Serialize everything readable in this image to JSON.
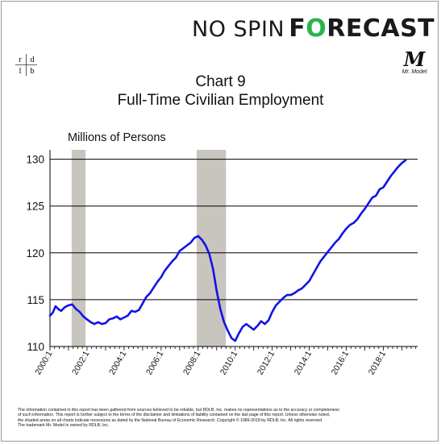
{
  "brand": {
    "no_spin": "NO SPIN",
    "forecast_f": "F",
    "forecast_o": "O",
    "forecast_rest": "RECAST",
    "rdlb_logo": [
      "r",
      "d",
      "l",
      "b"
    ],
    "mr_model_mark": "M",
    "mr_model_caption": "Mr. Model"
  },
  "colors": {
    "line": "#1212e8",
    "recession": "#c8c4be",
    "brand_green": "#2bb34a",
    "gridline": "#000000"
  },
  "chart_data": {
    "type": "line",
    "title_line1": "Chart 9",
    "title_line2": "Full-Time Civilian Employment",
    "units_label": "Millions of Persons",
    "ylim": [
      110,
      131
    ],
    "yticks": [
      110,
      115,
      120,
      125,
      130
    ],
    "xlim": [
      2000.0,
      2019.85
    ],
    "xticks": [
      "2000:1",
      "2002:1",
      "2004:1",
      "2006:1",
      "2008:1",
      "2010:1",
      "2012:1",
      "2014:1",
      "2016:1",
      "2018:1"
    ],
    "grid": "horizontal",
    "recessions": [
      {
        "start": 2001.17,
        "end": 2001.92
      },
      {
        "start": 2007.92,
        "end": 2009.5
      }
    ],
    "series": [
      {
        "x": [
          2000.0,
          2000.15,
          2000.3,
          2000.45,
          2000.6,
          2000.8,
          2001.0,
          2001.2,
          2001.4,
          2001.6,
          2001.8,
          2002.0,
          2002.2,
          2002.4,
          2002.6,
          2002.8,
          2003.0,
          2003.2,
          2003.4,
          2003.6,
          2003.8,
          2004.0,
          2004.2,
          2004.4,
          2004.6,
          2004.8,
          2005.0,
          2005.2,
          2005.4,
          2005.6,
          2005.8,
          2006.0,
          2006.2,
          2006.4,
          2006.6,
          2006.8,
          2007.0,
          2007.2,
          2007.4,
          2007.6,
          2007.8,
          2008.0,
          2008.2,
          2008.4,
          2008.6,
          2008.8,
          2009.0,
          2009.2,
          2009.4,
          2009.6,
          2009.8,
          2010.0,
          2010.2,
          2010.4,
          2010.6,
          2010.8,
          2011.0,
          2011.2,
          2011.4,
          2011.6,
          2011.8,
          2012.0,
          2012.2,
          2012.4,
          2012.6,
          2012.8,
          2013.0,
          2013.2,
          2013.4,
          2013.6,
          2013.8,
          2014.0,
          2014.2,
          2014.4,
          2014.6,
          2014.8,
          2015.0,
          2015.2,
          2015.4,
          2015.6,
          2015.8,
          2016.0,
          2016.2,
          2016.4,
          2016.6,
          2016.8,
          2017.0,
          2017.2,
          2017.4,
          2017.6,
          2017.8,
          2018.0,
          2018.2,
          2018.4,
          2018.6,
          2018.8,
          2019.0,
          2019.2
        ],
        "y": [
          113.3,
          113.6,
          114.3,
          114.0,
          113.8,
          114.2,
          114.4,
          114.5,
          114.0,
          113.7,
          113.2,
          112.9,
          112.6,
          112.4,
          112.6,
          112.4,
          112.5,
          112.9,
          113.0,
          113.2,
          112.9,
          113.1,
          113.3,
          113.8,
          113.7,
          113.9,
          114.6,
          115.3,
          115.7,
          116.3,
          116.9,
          117.4,
          118.1,
          118.6,
          119.1,
          119.5,
          120.2,
          120.5,
          120.8,
          121.1,
          121.6,
          121.8,
          121.4,
          120.8,
          119.9,
          118.3,
          115.9,
          114.0,
          112.6,
          111.7,
          110.9,
          110.6,
          111.4,
          112.1,
          112.4,
          112.1,
          111.8,
          112.2,
          112.7,
          112.4,
          112.8,
          113.7,
          114.4,
          114.8,
          115.2,
          115.5,
          115.5,
          115.7,
          116.0,
          116.2,
          116.6,
          117.0,
          117.7,
          118.4,
          119.1,
          119.6,
          120.1,
          120.6,
          121.1,
          121.5,
          122.1,
          122.6,
          123.0,
          123.2,
          123.6,
          124.2,
          124.7,
          125.3,
          125.9,
          126.1,
          126.8,
          127.0,
          127.6,
          128.2,
          128.7,
          129.2,
          129.6,
          129.9
        ]
      }
    ]
  },
  "footnote": {
    "line1": "The information contained in this report has been gathered from sources believed to be reliable, but RDLB, Inc. makes no representations as to the accuracy or completeness",
    "line2": "of such information. This report is further subject to the terms of the disclaimer and limitations of liability contained on the last page of this report. Unless otherwise noted,",
    "line3": "the shaded areas on all charts indicate recessions as dated by the National Bureau of Economic Research. Copyright © 1989-2018 by RDLB, Inc. All rights reserved.",
    "line4": "The trademark Mr. Model is owned by RDLB, Inc."
  }
}
